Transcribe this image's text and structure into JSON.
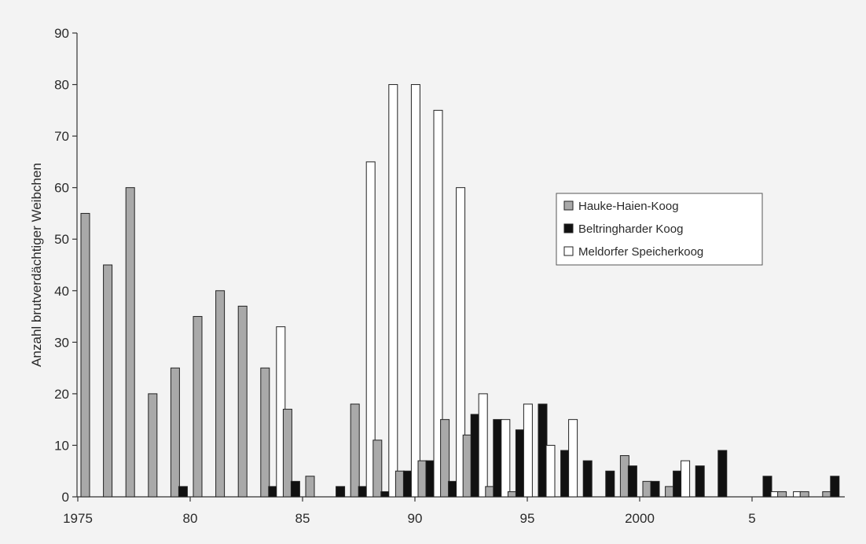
{
  "chart_data": {
    "type": "bar",
    "ylabel": "Anzahl brutverdächtiger Weibchen",
    "xlabel": "",
    "ylim": [
      0,
      90
    ],
    "yticks": [
      0,
      10,
      20,
      30,
      40,
      50,
      60,
      70,
      80,
      90
    ],
    "xticks": [
      {
        "year": 1975,
        "label": "1975"
      },
      {
        "year": 1980,
        "label": "80"
      },
      {
        "year": 1985,
        "label": "85"
      },
      {
        "year": 1990,
        "label": "90"
      },
      {
        "year": 1995,
        "label": "95"
      },
      {
        "year": 2000,
        "label": "2000"
      },
      {
        "year": 2005,
        "label": "5"
      }
    ],
    "years": [
      1975,
      1976,
      1977,
      1978,
      1979,
      1980,
      1981,
      1982,
      1983,
      1984,
      1985,
      1986,
      1987,
      1988,
      1989,
      1990,
      1991,
      1992,
      1993,
      1994,
      1995,
      1996,
      1997,
      1998,
      1999,
      2000,
      2001,
      2002,
      2003,
      2004,
      2005,
      2006,
      2007,
      2008
    ],
    "legend_position": "right",
    "series": [
      {
        "name": "Hauke-Haien-Koog",
        "color": "#a9a9a9",
        "values": [
          55,
          45,
          60,
          20,
          25,
          35,
          40,
          37,
          25,
          17,
          4,
          0,
          18,
          11,
          5,
          7,
          15,
          12,
          2,
          1,
          0,
          0,
          0,
          0,
          8,
          3,
          2,
          0,
          0,
          0,
          0,
          1,
          1,
          1
        ]
      },
      {
        "name": "Beltringharder Koog",
        "color": "#111111",
        "values": [
          0,
          0,
          0,
          0,
          2,
          0,
          0,
          0,
          2,
          3,
          0,
          2,
          2,
          1,
          5,
          7,
          3,
          16,
          15,
          13,
          18,
          9,
          7,
          5,
          6,
          3,
          5,
          6,
          9,
          0,
          4,
          0,
          0,
          4
        ]
      },
      {
        "name": "Meldorfer Speicherkoog",
        "color": "#ffffff",
        "values": [
          0,
          0,
          0,
          0,
          0,
          0,
          0,
          0,
          33,
          0,
          0,
          0,
          65,
          80,
          80,
          75,
          60,
          20,
          15,
          18,
          10,
          15,
          0,
          0,
          0,
          0,
          7,
          0,
          0,
          0,
          1,
          1,
          0,
          0
        ]
      }
    ]
  }
}
